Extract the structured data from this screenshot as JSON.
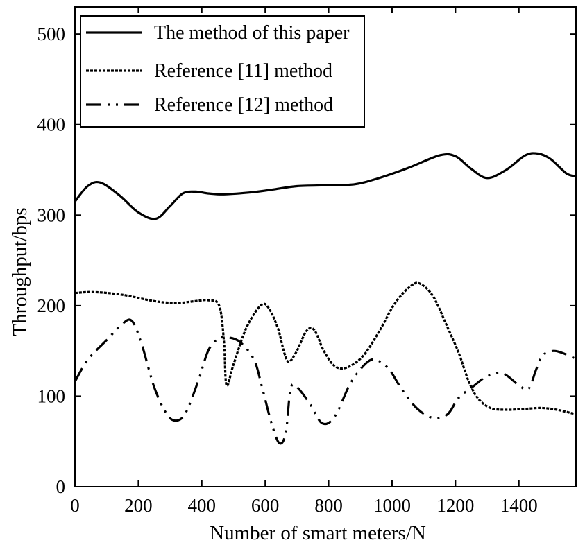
{
  "chart_data": {
    "type": "line",
    "xlabel": "Number of smart meters/N",
    "ylabel": "Throughput/bps",
    "xlim": [
      0,
      1580
    ],
    "ylim": [
      0,
      530
    ],
    "xticks": [
      0,
      200,
      400,
      600,
      800,
      1000,
      1200,
      1400
    ],
    "yticks": [
      0,
      100,
      200,
      300,
      400,
      500
    ],
    "grid": false,
    "legend_position": "top-left",
    "series": [
      {
        "name": "The method of this paper",
        "style": "solid",
        "color": "#000000",
        "points": [
          [
            0,
            315
          ],
          [
            40,
            332
          ],
          [
            80,
            336
          ],
          [
            140,
            322
          ],
          [
            200,
            303
          ],
          [
            255,
            296
          ],
          [
            300,
            310
          ],
          [
            340,
            324
          ],
          [
            380,
            326
          ],
          [
            420,
            324
          ],
          [
            470,
            323
          ],
          [
            550,
            325
          ],
          [
            620,
            328
          ],
          [
            700,
            332
          ],
          [
            800,
            333
          ],
          [
            880,
            334
          ],
          [
            950,
            340
          ],
          [
            1050,
            352
          ],
          [
            1150,
            366
          ],
          [
            1200,
            365
          ],
          [
            1250,
            351
          ],
          [
            1300,
            341
          ],
          [
            1360,
            350
          ],
          [
            1420,
            366
          ],
          [
            1460,
            368
          ],
          [
            1500,
            362
          ],
          [
            1550,
            346
          ],
          [
            1580,
            343
          ]
        ]
      },
      {
        "name": "Reference [11] method",
        "style": "dotted",
        "color": "#000000",
        "points": [
          [
            0,
            214
          ],
          [
            60,
            215
          ],
          [
            150,
            212
          ],
          [
            250,
            205
          ],
          [
            320,
            203
          ],
          [
            380,
            205
          ],
          [
            420,
            206
          ],
          [
            455,
            200
          ],
          [
            470,
            160
          ],
          [
            478,
            112
          ],
          [
            500,
            135
          ],
          [
            540,
            175
          ],
          [
            585,
            200
          ],
          [
            610,
            198
          ],
          [
            640,
            175
          ],
          [
            660,
            148
          ],
          [
            675,
            138
          ],
          [
            700,
            150
          ],
          [
            730,
            172
          ],
          [
            755,
            173
          ],
          [
            785,
            150
          ],
          [
            820,
            133
          ],
          [
            860,
            132
          ],
          [
            910,
            145
          ],
          [
            960,
            172
          ],
          [
            1010,
            203
          ],
          [
            1060,
            222
          ],
          [
            1090,
            224
          ],
          [
            1130,
            210
          ],
          [
            1170,
            180
          ],
          [
            1210,
            148
          ],
          [
            1240,
            118
          ],
          [
            1270,
            98
          ],
          [
            1310,
            87
          ],
          [
            1360,
            85
          ],
          [
            1420,
            86
          ],
          [
            1470,
            87
          ],
          [
            1520,
            85
          ],
          [
            1580,
            80
          ]
        ]
      },
      {
        "name": "Reference [12] method",
        "style": "dash-dot-dot",
        "color": "#000000",
        "points": [
          [
            0,
            116
          ],
          [
            40,
            140
          ],
          [
            100,
            162
          ],
          [
            150,
            180
          ],
          [
            180,
            183
          ],
          [
            210,
            158
          ],
          [
            250,
            110
          ],
          [
            290,
            80
          ],
          [
            320,
            73
          ],
          [
            350,
            82
          ],
          [
            390,
            118
          ],
          [
            420,
            150
          ],
          [
            450,
            163
          ],
          [
            480,
            165
          ],
          [
            520,
            160
          ],
          [
            565,
            140
          ],
          [
            590,
            110
          ],
          [
            620,
            70
          ],
          [
            645,
            48
          ],
          [
            665,
            60
          ],
          [
            680,
            108
          ],
          [
            700,
            110
          ],
          [
            740,
            92
          ],
          [
            780,
            70
          ],
          [
            820,
            78
          ],
          [
            870,
            115
          ],
          [
            920,
            137
          ],
          [
            950,
            140
          ],
          [
            990,
            130
          ],
          [
            1030,
            108
          ],
          [
            1080,
            86
          ],
          [
            1130,
            76
          ],
          [
            1175,
            80
          ],
          [
            1210,
            98
          ],
          [
            1260,
            112
          ],
          [
            1300,
            122
          ],
          [
            1350,
            125
          ],
          [
            1400,
            112
          ],
          [
            1430,
            108
          ],
          [
            1455,
            130
          ],
          [
            1475,
            145
          ],
          [
            1510,
            150
          ],
          [
            1550,
            146
          ],
          [
            1580,
            141
          ]
        ]
      }
    ]
  }
}
